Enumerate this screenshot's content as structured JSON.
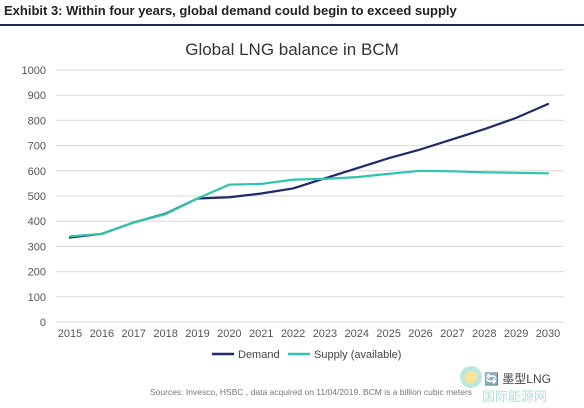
{
  "exhibit_title": "Exhibit 3: Within four years, global demand could begin to exceed supply",
  "source_note": "Sources: Invesco, HSBC , data acquired on 11/04/2019. BCM is a billion cubic meters",
  "watermark": {
    "line1": "🔄 墨型LNG",
    "line2": "国际能源网"
  },
  "chart_data": {
    "type": "line",
    "title": "Global LNG balance in BCM",
    "xlabel": "",
    "ylabel": "",
    "x": [
      "2015",
      "2016",
      "2017",
      "2018",
      "2019",
      "2020",
      "2021",
      "2022",
      "2023",
      "2024",
      "2025",
      "2026",
      "2027",
      "2028",
      "2029",
      "2030"
    ],
    "ylim": [
      0,
      1000
    ],
    "yticks": [
      0,
      100,
      200,
      300,
      400,
      500,
      600,
      700,
      800,
      900,
      1000
    ],
    "grid": true,
    "legend_position": "bottom",
    "series": [
      {
        "name": "Demand",
        "color": "#1f2a6b",
        "values": [
          335,
          350,
          395,
          430,
          490,
          495,
          510,
          530,
          570,
          610,
          650,
          685,
          725,
          765,
          810,
          865
        ]
      },
      {
        "name": "Supply (available)",
        "color": "#2ec4b0",
        "values": [
          340,
          350,
          395,
          428,
          490,
          545,
          548,
          565,
          568,
          575,
          588,
          600,
          598,
          594,
          592,
          590
        ]
      }
    ]
  }
}
